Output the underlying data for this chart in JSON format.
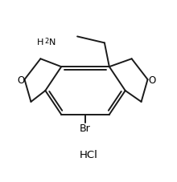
{
  "background_color": "#ffffff",
  "line_color": "#1a1a1a",
  "line_width": 1.4,
  "text_color": "#000000",
  "hcl_text": "HCl",
  "h2n_text": "H",
  "h2n_sub": "2",
  "h2n_n": "N",
  "o_text": "O",
  "br_text": "Br",
  "figsize": [
    2.2,
    2.28
  ],
  "dpi": 100,
  "xlim": [
    0,
    11
  ],
  "ylim": [
    0,
    11
  ]
}
